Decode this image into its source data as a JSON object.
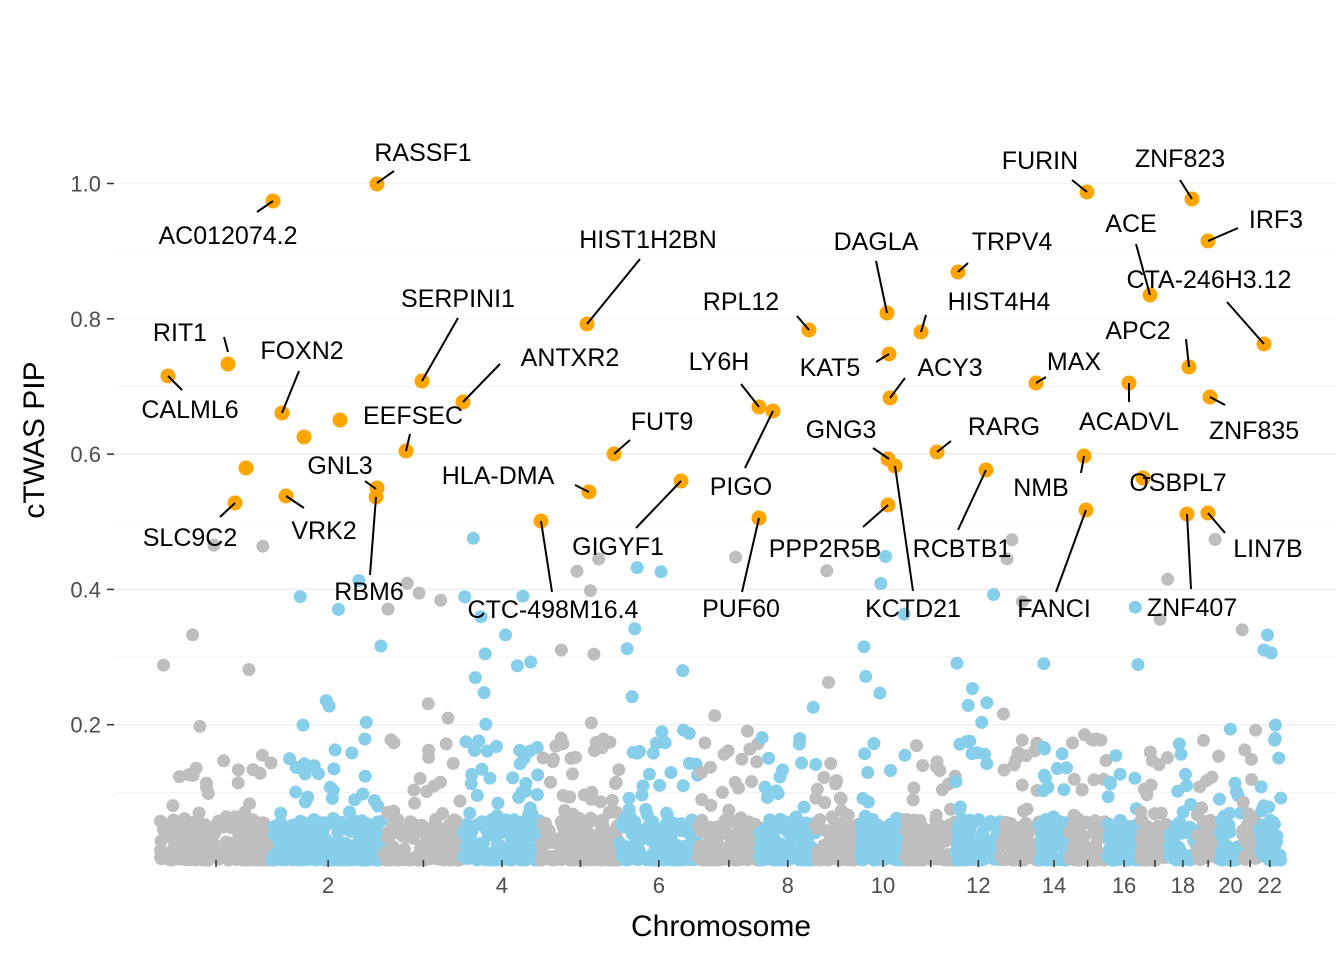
{
  "chart_data": {
    "type": "scatter",
    "title": "",
    "xlabel": "Chromosome",
    "ylabel": "cTWAS PIP",
    "ylim": [
      0,
      1.0
    ],
    "y_ticks": [
      0.2,
      0.4,
      0.6,
      0.8,
      1.0
    ],
    "y_tick_labels": [
      "0.2",
      "0.4",
      "0.6",
      "0.8",
      "1.0"
    ],
    "x_ticks": [
      1,
      2,
      3,
      4,
      5,
      6,
      7,
      8,
      9,
      10,
      11,
      12,
      13,
      14,
      15,
      16,
      17,
      18,
      19,
      20,
      21,
      22
    ],
    "x_tick_labels": [
      "",
      "2",
      "",
      "4",
      "",
      "6",
      "",
      "8",
      "",
      "10",
      "",
      "12",
      "",
      "14",
      "",
      "16",
      "",
      "18",
      "",
      "20",
      "",
      "22"
    ],
    "grid": true,
    "colors": {
      "odd_chromosome": "#bebebe",
      "even_chromosome": "#87ceeb",
      "highlighted": "#ffa500",
      "label_line": "#000000"
    },
    "chromosomes": [
      {
        "chr": 1,
        "start": 0.0,
        "end": 0.1
      },
      {
        "chr": 2,
        "start": 0.1,
        "end": 0.2
      },
      {
        "chr": 3,
        "start": 0.2,
        "end": 0.27
      },
      {
        "chr": 4,
        "start": 0.27,
        "end": 0.34
      },
      {
        "chr": 5,
        "start": 0.34,
        "end": 0.41
      },
      {
        "chr": 6,
        "start": 0.41,
        "end": 0.48
      },
      {
        "chr": 7,
        "start": 0.48,
        "end": 0.535
      },
      {
        "chr": 8,
        "start": 0.535,
        "end": 0.585
      },
      {
        "chr": 9,
        "start": 0.585,
        "end": 0.625
      },
      {
        "chr": 10,
        "start": 0.625,
        "end": 0.665
      },
      {
        "chr": 11,
        "start": 0.665,
        "end": 0.71
      },
      {
        "chr": 12,
        "start": 0.71,
        "end": 0.75
      },
      {
        "chr": 13,
        "start": 0.75,
        "end": 0.785
      },
      {
        "chr": 14,
        "start": 0.785,
        "end": 0.81
      },
      {
        "chr": 15,
        "start": 0.81,
        "end": 0.845
      },
      {
        "chr": 16,
        "start": 0.845,
        "end": 0.875
      },
      {
        "chr": 17,
        "start": 0.875,
        "end": 0.9
      },
      {
        "chr": 18,
        "start": 0.9,
        "end": 0.925
      },
      {
        "chr": 19,
        "start": 0.925,
        "end": 0.945
      },
      {
        "chr": 20,
        "start": 0.945,
        "end": 0.965
      },
      {
        "chr": 21,
        "start": 0.965,
        "end": 0.98
      },
      {
        "chr": 22,
        "start": 0.98,
        "end": 1.0
      }
    ],
    "background_points_count": 2500,
    "highlighted_genes": [
      {
        "gene": "RIT1",
        "chr": 1,
        "pos": 0.62,
        "pip": 0.732
      },
      {
        "gene": "CALML6",
        "chr": 1,
        "pos": 0.08,
        "pip": 0.715
      },
      {
        "gene": "SLC9C2",
        "chr": 1,
        "pos": 0.68,
        "pip": 0.526
      },
      {
        "gene": "AC012074.2",
        "chr": 2,
        "pos": 0.13,
        "pip": 0.975
      },
      {
        "gene": "FOXN2",
        "chr": 2,
        "pos": 0.24,
        "pip": 0.66
      },
      {
        "gene": "VRK2",
        "chr": 2,
        "pos": 0.26,
        "pip": 0.538
      },
      {
        "gene": "RASSF1",
        "chr": 3,
        "pos": 0.25,
        "pip": 1.0
      },
      {
        "gene": "EEFSEC",
        "chr": 3,
        "pos": 0.68,
        "pip": 0.603
      },
      {
        "gene": "GNL3",
        "chr": 3,
        "pos": 0.25,
        "pip": 0.548
      },
      {
        "gene": "RBM6",
        "chr": 3,
        "pos": 0.24,
        "pip": 0.536
      },
      {
        "gene": "SERPINI1",
        "chr": 3,
        "pos": 0.9,
        "pip": 0.708
      },
      {
        "gene": "ANTXR2",
        "chr": 4,
        "pos": 0.4,
        "pip": 0.676
      },
      {
        "gene": "CTC-498M16.4",
        "chr": 5,
        "pos": 0.95,
        "pip": 0.5
      },
      {
        "gene": "HIST1H2BN",
        "chr": 6,
        "pos": 0.1,
        "pip": 0.792
      },
      {
        "gene": "HLA-DMA",
        "chr": 6,
        "pos": 0.13,
        "pip": 0.542
      },
      {
        "gene": "FUT9",
        "chr": 6,
        "pos": 0.3,
        "pip": 0.6
      },
      {
        "gene": "GIGYF1",
        "chr": 7,
        "pos": 0.8,
        "pip": 0.56
      },
      {
        "gene": "LY6H",
        "chr": 8,
        "pos": 0.95,
        "pip": 0.668
      },
      {
        "gene": "PIGO",
        "chr": 9,
        "pos": 0.1,
        "pip": 0.664
      },
      {
        "gene": "PUF60",
        "chr": 8,
        "pos": 0.93,
        "pip": 0.5
      },
      {
        "gene": "RPL12",
        "chr": 9,
        "pos": 0.85,
        "pip": 0.782
      },
      {
        "gene": "DAGLA",
        "chr": 11,
        "pos": 0.55,
        "pip": 0.808
      },
      {
        "gene": "KAT5",
        "chr": 11,
        "pos": 0.55,
        "pip": 0.746
      },
      {
        "gene": "ACY3",
        "chr": 11,
        "pos": 0.6,
        "pip": 0.682
      },
      {
        "gene": "GNG3",
        "chr": 11,
        "pos": 0.55,
        "pip": 0.59
      },
      {
        "gene": "PPP2R5B",
        "chr": 11,
        "pos": 0.55,
        "pip": 0.523
      },
      {
        "gene": "KCTD21",
        "chr": 11,
        "pos": 0.7,
        "pip": 0.581
      },
      {
        "gene": "HIST4H4",
        "chr": 12,
        "pos": 0.15,
        "pip": 0.78
      },
      {
        "gene": "TRPV4",
        "chr": 12,
        "pos": 0.95,
        "pip": 0.868
      },
      {
        "gene": "RARG",
        "chr": 12,
        "pos": 0.1,
        "pip": 0.603
      },
      {
        "gene": "RCBTB1",
        "chr": 13,
        "pos": 0.55,
        "pip": 0.575
      },
      {
        "gene": "MAX",
        "chr": 14,
        "pos": 0.5,
        "pip": 0.704
      },
      {
        "gene": "FURIN",
        "chr": 15,
        "pos": 0.9,
        "pip": 0.986
      },
      {
        "gene": "NMB",
        "chr": 15,
        "pos": 0.95,
        "pip": 0.597
      },
      {
        "gene": "FANCI",
        "chr": 15,
        "pos": 0.97,
        "pip": 0.515
      },
      {
        "gene": "ACE",
        "chr": 17,
        "pos": 0.6,
        "pip": 0.834
      },
      {
        "gene": "ACADVL",
        "chr": 17,
        "pos": 0.2,
        "pip": 0.703
      },
      {
        "gene": "OSBPL7",
        "chr": 17,
        "pos": 0.3,
        "pip": 0.564
      },
      {
        "gene": "APC2",
        "chr": 19,
        "pos": 0.1,
        "pip": 0.727
      },
      {
        "gene": "ZNF407",
        "chr": 18,
        "pos": 0.9,
        "pip": 0.51
      },
      {
        "gene": "ZNF823",
        "chr": 19,
        "pos": 0.4,
        "pip": 0.976
      },
      {
        "gene": "IRF3",
        "chr": 19,
        "pos": 0.9,
        "pip": 0.915
      },
      {
        "gene": "ZNF835",
        "chr": 19,
        "pos": 0.95,
        "pip": 0.684
      },
      {
        "gene": "LIN7B",
        "chr": 19,
        "pos": 0.95,
        "pip": 0.511
      },
      {
        "gene": "CTA-246H3.12",
        "chr": 22,
        "pos": 0.5,
        "pip": 0.762
      }
    ]
  }
}
